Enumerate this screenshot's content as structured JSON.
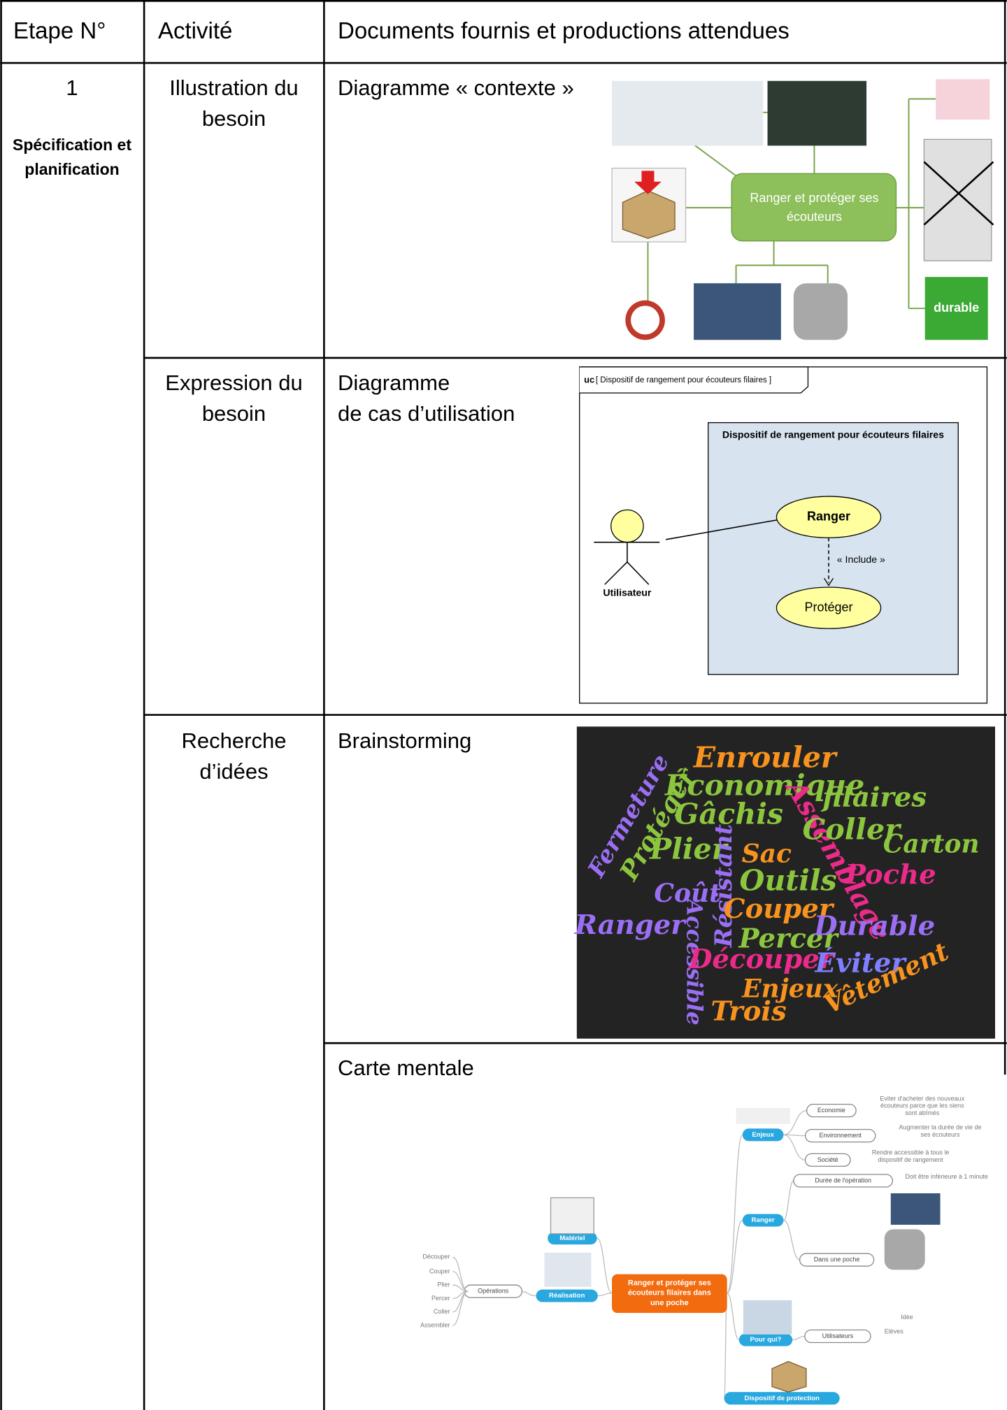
{
  "header": {
    "step": "Etape N°",
    "activity": "Activité",
    "documents": "Documents fournis et productions attendues"
  },
  "step": {
    "number": "1",
    "name": "Spécification et planification"
  },
  "rows": [
    {
      "activity": "Illustration du besoin",
      "document": [
        "Diagramme « contexte »"
      ],
      "diagram": {
        "center": [
          "Ranger et protéger ses",
          "écouteurs"
        ],
        "badge": "durable"
      }
    },
    {
      "activity": "Expression du besoin",
      "document": [
        "Diagramme",
        "de cas d’utilisation"
      ],
      "diagram": {
        "keyword": "uc",
        "frame": "[ Dispositif de rangement pour écouteurs filaires ]",
        "system": "Dispositif de rangement pour écouteurs filaires",
        "actor": "Utilisateur",
        "use_cases": [
          "Ranger",
          "Protéger"
        ],
        "relation": "« Include »"
      }
    },
    {
      "activity": "Recherche d’idées",
      "document": [
        "Brainstorming"
      ],
      "words": [
        {
          "text": "Enrouler",
          "color": "#f7931e"
        },
        {
          "text": "Économique",
          "color": "#8cc63f"
        },
        {
          "text": "filaires",
          "color": "#8cc63f"
        },
        {
          "text": "Fermeture",
          "color": "#9b6ff5"
        },
        {
          "text": "Protéger",
          "color": "#8cc63f"
        },
        {
          "text": "Gâchis",
          "color": "#8cc63f"
        },
        {
          "text": "Assemblage",
          "color": "#ec2a8a"
        },
        {
          "text": "Coller",
          "color": "#8cc63f"
        },
        {
          "text": "Carton",
          "color": "#8cc63f"
        },
        {
          "text": "Plier",
          "color": "#8cc63f"
        },
        {
          "text": "Sac",
          "color": "#f7931e"
        },
        {
          "text": "Résistant",
          "color": "#9b6ff5"
        },
        {
          "text": "Outils",
          "color": "#8cc63f"
        },
        {
          "text": "Poche",
          "color": "#ec2a8a"
        },
        {
          "text": "Coût",
          "color": "#9b6ff5"
        },
        {
          "text": "Couper",
          "color": "#f7931e"
        },
        {
          "text": "Ranger",
          "color": "#9b6ff5"
        },
        {
          "text": "Accessible",
          "color": "#9b6ff5"
        },
        {
          "text": "Percer",
          "color": "#8cc63f"
        },
        {
          "text": "Durable",
          "color": "#9b6ff5"
        },
        {
          "text": "Découper",
          "color": "#ec2a8a"
        },
        {
          "text": "Éviter",
          "color": "#7f7fff"
        },
        {
          "text": "Enjeux",
          "color": "#f7931e"
        },
        {
          "text": "Vêtement",
          "color": "#f7931e"
        },
        {
          "text": "Trois",
          "color": "#f7931e"
        }
      ]
    },
    {
      "document": [
        "Carte mentale"
      ],
      "mind_map": {
        "center": [
          "Ranger et protéger ses",
          "écouteurs filaires dans",
          "une poche"
        ],
        "branches": [
          "Enjeux",
          "Ranger",
          "Matériel",
          "Réalisation",
          "Pour qui?",
          "Dispositif de protection"
        ],
        "sub_nodes": [
          "Economie",
          "Environnement",
          "Société",
          "Durée de l'opération",
          "Dans une poche",
          "Opérations",
          "Utilisateurs"
        ],
        "notes": [
          [
            "Eviter d'acheter des nouveaux",
            "écouteurs parce que les siens",
            "sont abîmés"
          ],
          [
            "Augmenter la durée de vie de",
            "ses écouteurs"
          ],
          [
            "Rendre accessible à tous le",
            "dispositif de rangement"
          ],
          [
            "Doit être inférieure à 1 minute"
          ],
          [
            "Idée"
          ],
          [
            "Elèves"
          ],
          [
            "Découper"
          ],
          [
            "Couper"
          ],
          [
            "Plier"
          ],
          [
            "Percer"
          ],
          [
            "Coller"
          ],
          [
            "Assembler"
          ]
        ]
      }
    }
  ]
}
